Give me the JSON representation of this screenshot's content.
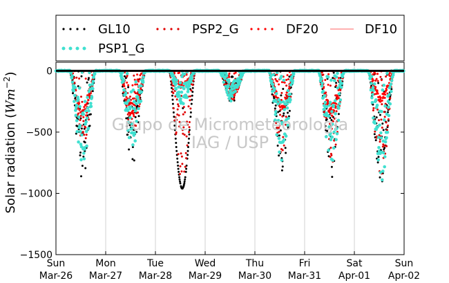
{
  "chart_data": {
    "type": "scatter",
    "title": "",
    "xlabel": "",
    "ylabel": "Solar radiation (",
    "ylabel_math": "Wm",
    "ylabel_exp": "−2",
    "ylabel_close": ")",
    "ylim": [
      -1500,
      70
    ],
    "xlim": [
      0,
      7
    ],
    "grid_x": true,
    "grid_y": false,
    "legend_placement": "top",
    "yticks": [
      {
        "value": 0,
        "label": "0"
      },
      {
        "value": -500,
        "label": "−500"
      },
      {
        "value": -1000,
        "label": "−1000"
      },
      {
        "value": -1500,
        "label": "−1500"
      }
    ],
    "xticks": [
      {
        "value": 0,
        "day": "Sun",
        "date": "Mar-26"
      },
      {
        "value": 1,
        "day": "Mon",
        "date": "Mar-27"
      },
      {
        "value": 2,
        "day": "Tue",
        "date": "Mar-28"
      },
      {
        "value": 3,
        "day": "Wed",
        "date": "Mar-29"
      },
      {
        "value": 4,
        "day": "Thu",
        "date": "Mar-30"
      },
      {
        "value": 5,
        "day": "Fri",
        "date": "Mar-31"
      },
      {
        "value": 6,
        "day": "Sat",
        "date": "Apr-01"
      },
      {
        "value": 7,
        "day": "Sun",
        "date": "Apr-02"
      }
    ],
    "watermark": [
      "Grupo de Micrometeorologia",
      "IAG / USP"
    ],
    "series": [
      {
        "name": "GL10",
        "color": "#000000",
        "marker": "point",
        "peaks": [
          -900,
          -760,
          -960,
          -260,
          -820,
          -870,
          -930
        ]
      },
      {
        "name": "PSP2_G",
        "color": "#e00000",
        "marker": "point",
        "peaks": [
          -620,
          -560,
          -900,
          -250,
          -700,
          -780,
          -860
        ]
      },
      {
        "name": "DF20",
        "color": "#ff0000",
        "marker": "point",
        "peaks": [
          -420,
          -380,
          -130,
          -240,
          -330,
          -370,
          -260
        ]
      },
      {
        "name": "DF10",
        "color": "#ff8080",
        "marker": "line",
        "peaks": [
          0,
          0,
          0,
          0,
          0,
          0,
          0
        ]
      },
      {
        "name": "PSP1_G",
        "color": "#40e0d0",
        "marker": "point",
        "peaks": [
          -760,
          -640,
          -280,
          -250,
          -740,
          -760,
          -900
        ]
      }
    ]
  }
}
